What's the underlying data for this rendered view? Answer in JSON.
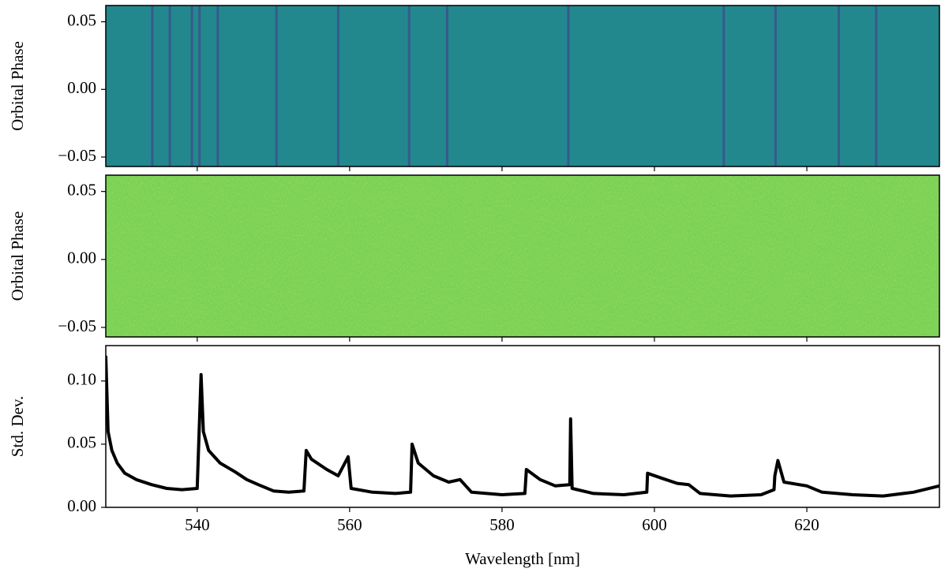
{
  "chart_data": [
    {
      "type": "heatmap",
      "ylabel": "Orbital Phase",
      "color": "#23888e",
      "line_color": "#3b528b",
      "xlim": [
        528,
        637.4
      ],
      "ylim": [
        -0.057,
        0.062
      ],
      "yticks": [
        {
          "value": 0.05,
          "label": "0.05"
        },
        {
          "value": 0,
          "label": "0.00"
        },
        {
          "value": -0.05,
          "label": "−0.05"
        }
      ],
      "lines": [
        534.1,
        536.4,
        539.3,
        540.3,
        542.7,
        550.4,
        558.5,
        567.8,
        572.8,
        588.7,
        609.1,
        615.9,
        624.2,
        629.1
      ]
    },
    {
      "type": "noise",
      "ylabel": "Orbital Phase",
      "color": "#79d152",
      "xlim": [
        528,
        637.4
      ],
      "ylim": [
        -0.057,
        0.062
      ],
      "yticks": [
        {
          "value": 0.05,
          "label": "0.05"
        },
        {
          "value": 0,
          "label": "0.00"
        },
        {
          "value": -0.05,
          "label": "−0.05"
        }
      ]
    },
    {
      "type": "line",
      "ylabel": "Std. Dev.",
      "xlabel": "Wavelength [nm]",
      "color": "#000000",
      "xlim": [
        528,
        637.4
      ],
      "ylim": [
        0,
        0.128
      ],
      "xticks": [
        540,
        560,
        580,
        600,
        620
      ],
      "yticks": [
        {
          "value": 0,
          "label": "0.00"
        },
        {
          "value": 0.05,
          "label": "0.05"
        },
        {
          "value": 0.1,
          "label": "0.10"
        }
      ],
      "x": [
        528.0,
        528.3,
        528.8,
        529.5,
        530.5,
        532,
        534,
        536,
        538,
        540,
        540.5,
        540.8,
        541.5,
        543,
        545,
        546.5,
        548,
        550,
        552,
        554,
        554.3,
        555,
        557,
        558.5,
        559.8,
        560.2,
        563,
        566,
        568,
        568.2,
        569,
        571,
        573,
        574.5,
        576,
        580,
        583,
        583.2,
        585,
        587,
        588.9,
        589.0,
        589.2,
        592,
        596,
        599,
        599.1,
        601,
        603,
        604.5,
        606,
        610,
        614,
        615.7,
        615.8,
        616.2,
        617,
        620,
        622,
        626,
        630,
        634,
        637.4
      ],
      "values": [
        0.12,
        0.06,
        0.045,
        0.035,
        0.027,
        0.022,
        0.018,
        0.015,
        0.014,
        0.015,
        0.105,
        0.06,
        0.045,
        0.035,
        0.028,
        0.022,
        0.018,
        0.013,
        0.012,
        0.013,
        0.045,
        0.038,
        0.03,
        0.025,
        0.04,
        0.015,
        0.012,
        0.011,
        0.012,
        0.05,
        0.035,
        0.025,
        0.02,
        0.022,
        0.012,
        0.01,
        0.011,
        0.03,
        0.022,
        0.017,
        0.018,
        0.07,
        0.015,
        0.011,
        0.01,
        0.012,
        0.027,
        0.023,
        0.019,
        0.018,
        0.011,
        0.009,
        0.01,
        0.014,
        0.025,
        0.037,
        0.02,
        0.017,
        0.012,
        0.01,
        0.009,
        0.012,
        0.017
      ]
    }
  ]
}
